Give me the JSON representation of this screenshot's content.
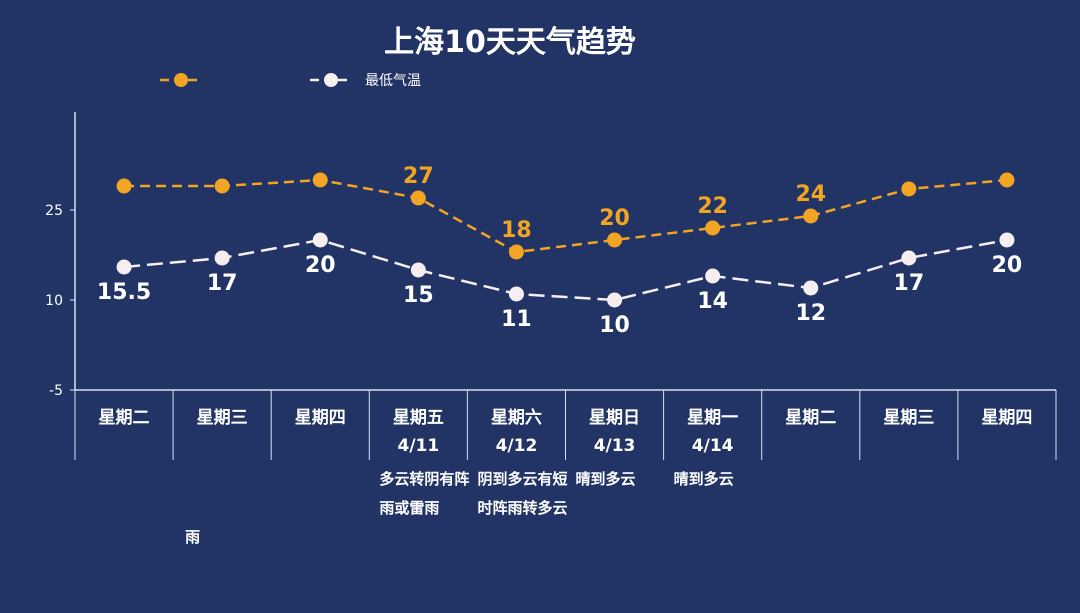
{
  "colors": {
    "background": "#223466",
    "high": "#f2a423",
    "low": "#f6eef0",
    "axis": "#d9e0ee",
    "text": "#ffffff"
  },
  "chart_data": {
    "type": "line",
    "title": "上海10天天气趋势",
    "legend_position": "top",
    "ylim": [
      -5,
      40
    ],
    "yticks": [
      -5,
      10,
      25
    ],
    "categories": [
      {
        "day": "星期二",
        "date": "",
        "weather": ""
      },
      {
        "day": "星期三",
        "date": "",
        "weather": "雨"
      },
      {
        "day": "星期四",
        "date": "",
        "weather": ""
      },
      {
        "day": "星期五",
        "date": "4/11",
        "weather": "多云转阴有阵雨或雷雨"
      },
      {
        "day": "星期六",
        "date": "4/12",
        "weather": "阴到多云有短时阵雨转多云"
      },
      {
        "day": "星期日",
        "date": "4/13",
        "weather": "晴到多云"
      },
      {
        "day": "星期一",
        "date": "4/14",
        "weather": "晴到多云"
      },
      {
        "day": "星期二",
        "date": "",
        "weather": ""
      },
      {
        "day": "星期三",
        "date": "",
        "weather": ""
      },
      {
        "day": "星期四",
        "date": "",
        "weather": ""
      }
    ],
    "series": [
      {
        "name": "",
        "color": "#f2a423",
        "dashed": true,
        "values": [
          29,
          29,
          30,
          27,
          18,
          20,
          22,
          24,
          28.5,
          30
        ],
        "labels": [
          "",
          "",
          "",
          "27",
          "18",
          "20",
          "22",
          "24",
          "",
          ""
        ]
      },
      {
        "name": "最低气温",
        "color": "#f6eef0",
        "dashed": true,
        "values": [
          15.5,
          17,
          20,
          15,
          11,
          10,
          14,
          12,
          17,
          20
        ],
        "labels": [
          "15.5",
          "17",
          "20",
          "15",
          "11",
          "10",
          "14",
          "12",
          "17",
          "20"
        ]
      }
    ]
  }
}
